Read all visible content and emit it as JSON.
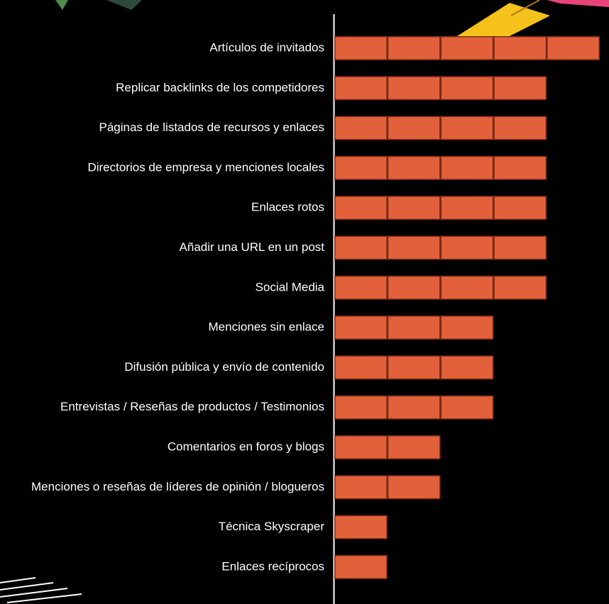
{
  "chart_data": {
    "type": "barh",
    "color": "#e2613b",
    "categories": [
      "Artículos de invitados",
      "Replicar backlinks de los competidores",
      "Páginas de listados de recursos y enlaces",
      "Directorios de empresa y menciones locales",
      "Enlaces rotos",
      "Añadir una URL en un post",
      "Social Media",
      "Menciones sin enlace",
      "Difusión pública y envío de contenido",
      "Entrevistas / Reseñas de productos / Testimonios",
      "Comentarios en foros y blogs",
      "Menciones o reseñas de líderes de opinión / blogueros",
      "Técnica Skyscraper",
      "Enlaces recíprocos"
    ],
    "values": [
      5,
      4,
      4,
      4,
      4,
      4,
      4,
      3,
      3,
      3,
      2,
      2,
      1,
      1
    ]
  }
}
